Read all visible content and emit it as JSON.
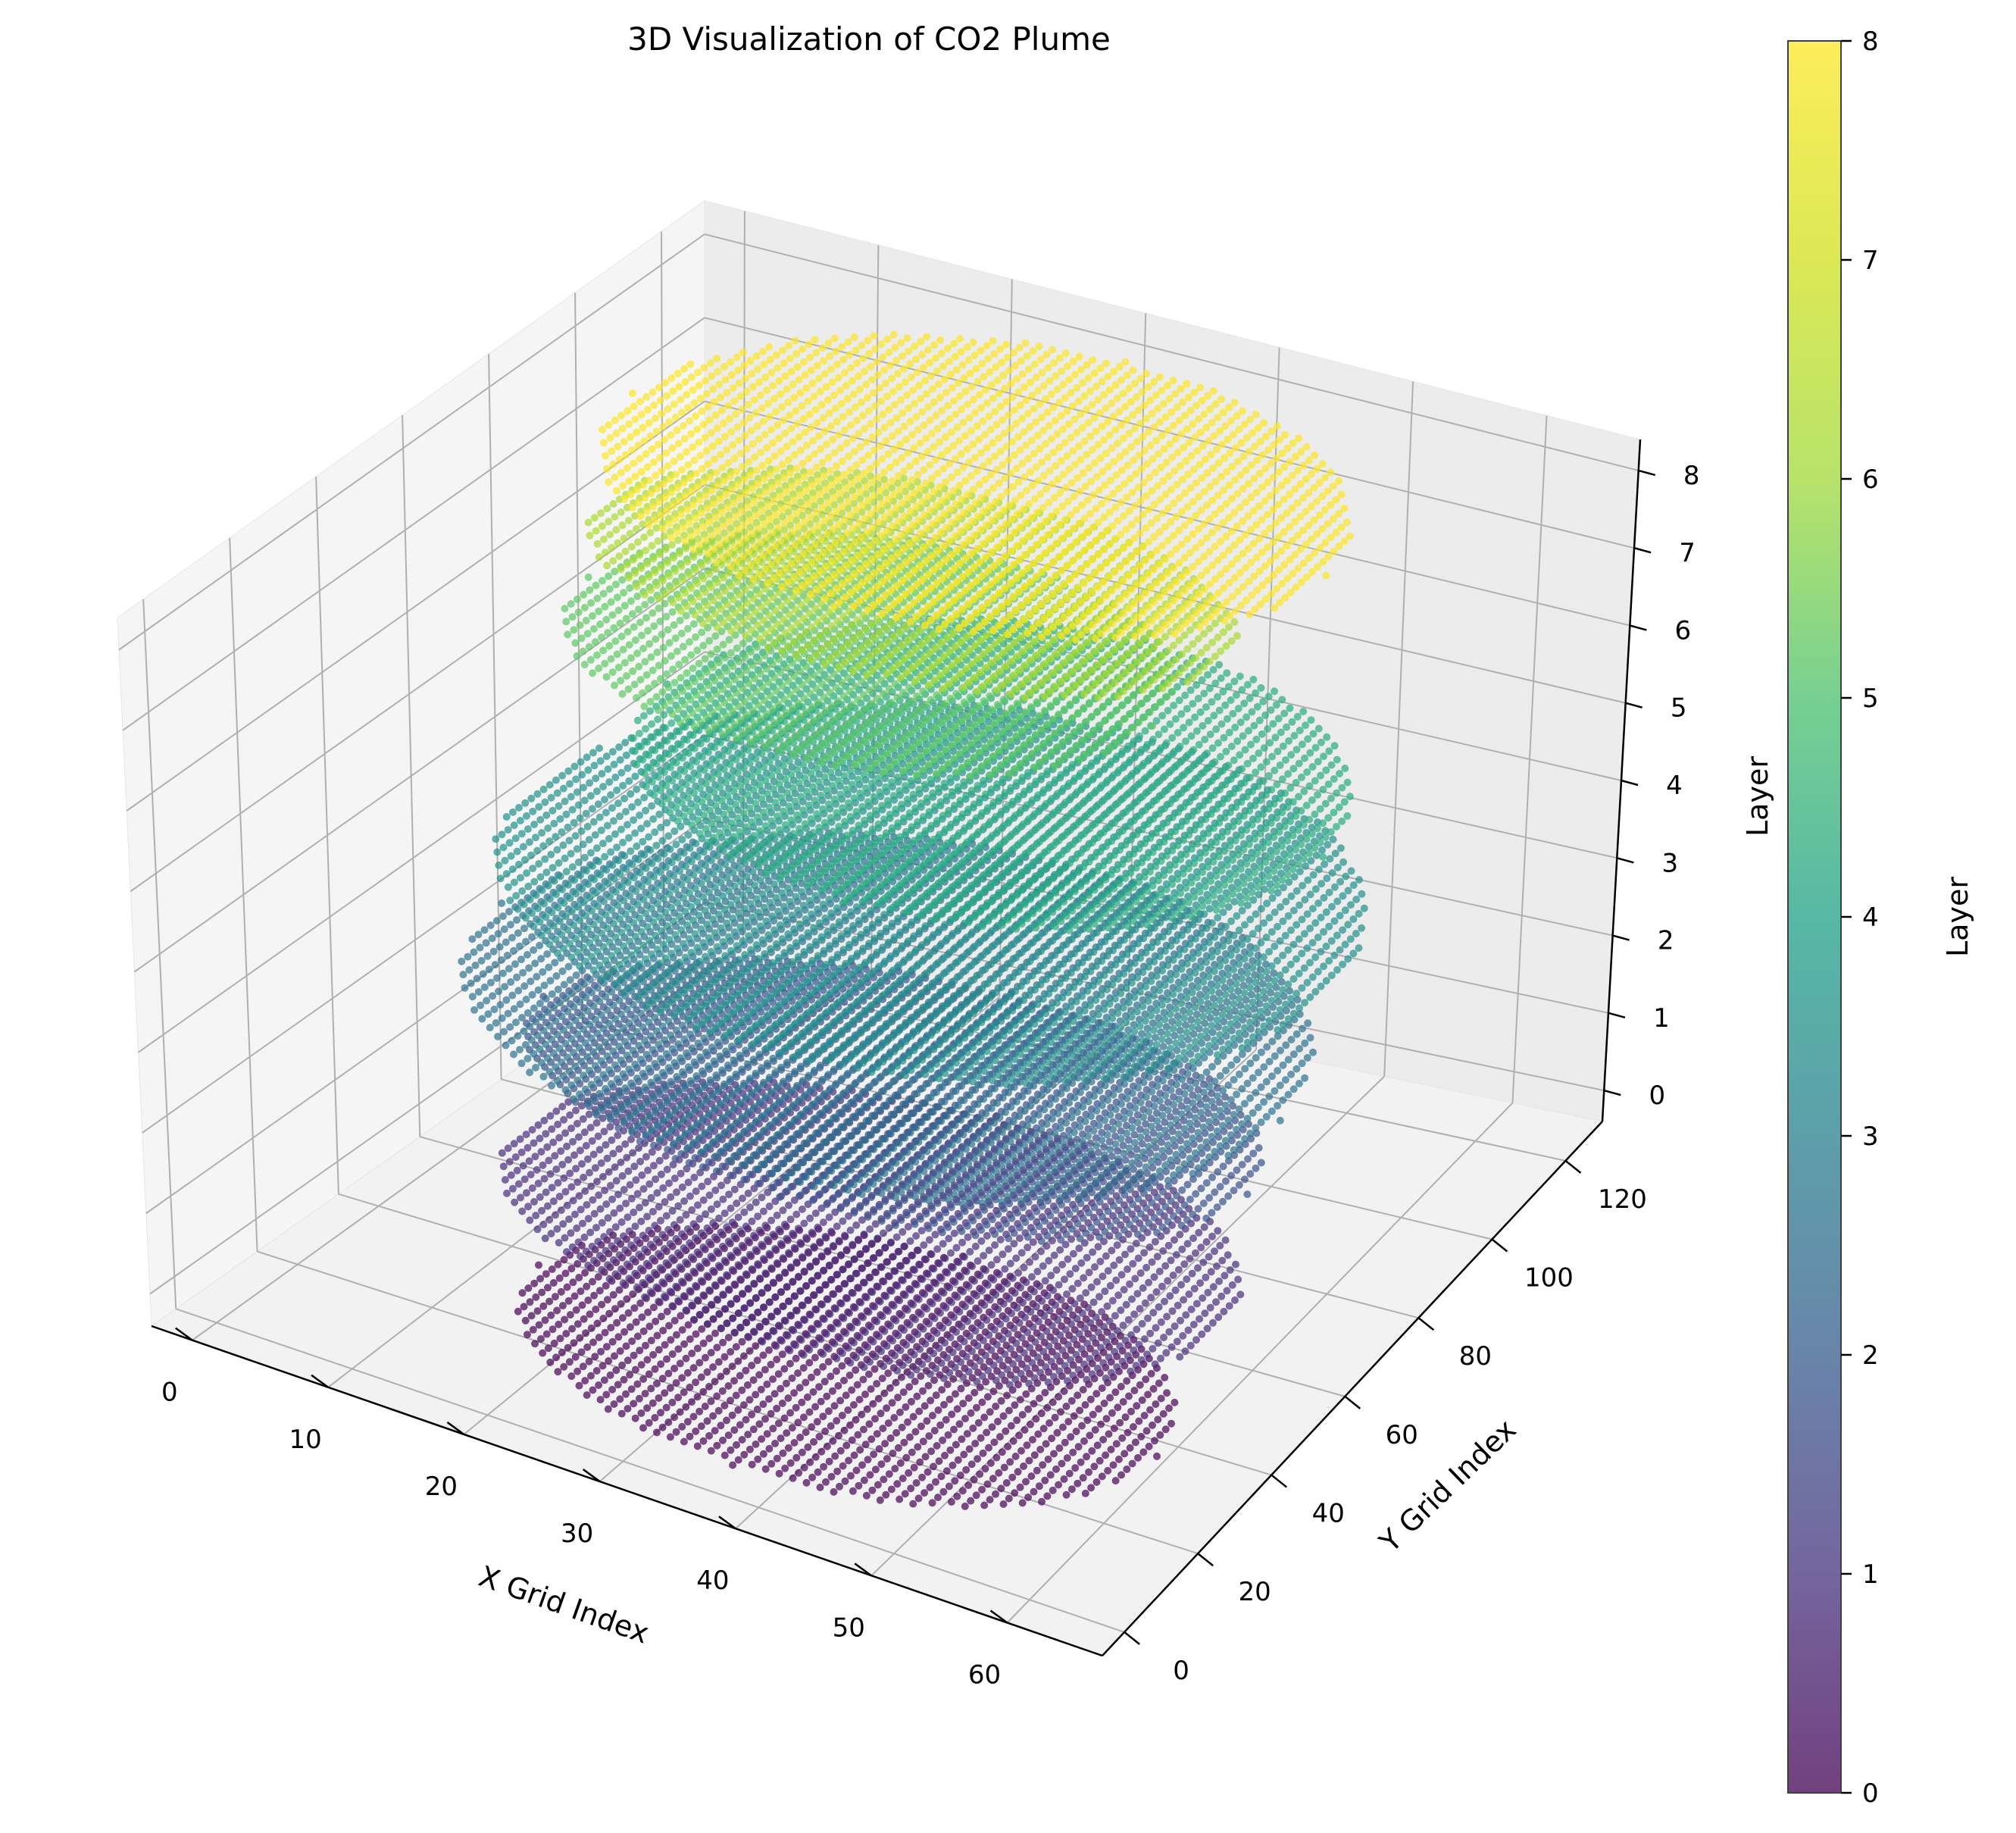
{
  "chart_data": {
    "type": "scatter",
    "projection": "3d",
    "title": "3D Visualization of CO2 Plume",
    "xlabel": "X Grid Index",
    "ylabel": "Y Grid Index",
    "zlabel": "Layer",
    "colorbar_label": "Layer",
    "colormap": "viridis",
    "alpha": 0.7,
    "x_ticks": [
      "0",
      "10",
      "20",
      "30",
      "40",
      "50",
      "60"
    ],
    "y_ticks": [
      "0",
      "20",
      "40",
      "60",
      "80",
      "100",
      "120"
    ],
    "z_ticks": [
      "0",
      "1",
      "2",
      "3",
      "4",
      "5",
      "6",
      "7",
      "8"
    ],
    "colorbar_ticks": [
      "0",
      "1",
      "2",
      "3",
      "4",
      "5",
      "6",
      "7",
      "8"
    ],
    "xlim": [
      -3,
      67
    ],
    "ylim": [
      -6,
      130
    ],
    "zlim": [
      -0.4,
      8.4
    ],
    "grid": true,
    "layers": [
      {
        "layer": 0,
        "x_range": [
          15,
          61
        ],
        "y_range": [
          0,
          60
        ],
        "points_shown": "dense grid, 1 unit spacing"
      },
      {
        "layer": 1,
        "x_range": [
          10,
          62
        ],
        "y_range": [
          10,
          75
        ],
        "points_shown": "dense grid, 1 unit spacing"
      },
      {
        "layer": 2,
        "x_range": [
          8,
          60
        ],
        "y_range": [
          25,
          85
        ],
        "points_shown": "dense grid, 1 unit spacing"
      },
      {
        "layer": 3,
        "x_range": [
          5,
          62
        ],
        "y_range": [
          10,
          100
        ],
        "points_shown": "dense grid, 1 unit spacing"
      },
      {
        "layer": 4,
        "x_range": [
          4,
          62
        ],
        "y_range": [
          20,
          115
        ],
        "points_shown": "dense grid, 1 unit spacing"
      },
      {
        "layer": 5,
        "x_range": [
          10,
          58
        ],
        "y_range": [
          40,
          118
        ],
        "points_shown": "dense grid, 1 unit spacing"
      },
      {
        "layer": 6,
        "x_range": [
          4,
          45
        ],
        "y_range": [
          50,
          110
        ],
        "points_shown": "dense grid, 1 unit spacing"
      },
      {
        "layer": 7,
        "x_range": [
          5,
          50
        ],
        "y_range": [
          55,
          105
        ],
        "points_shown": "dense grid, 1 unit spacing"
      },
      {
        "layer": 8,
        "x_range": [
          5,
          55
        ],
        "y_range": [
          50,
          125
        ],
        "points_shown": "dense grid, 1 unit spacing"
      }
    ]
  }
}
